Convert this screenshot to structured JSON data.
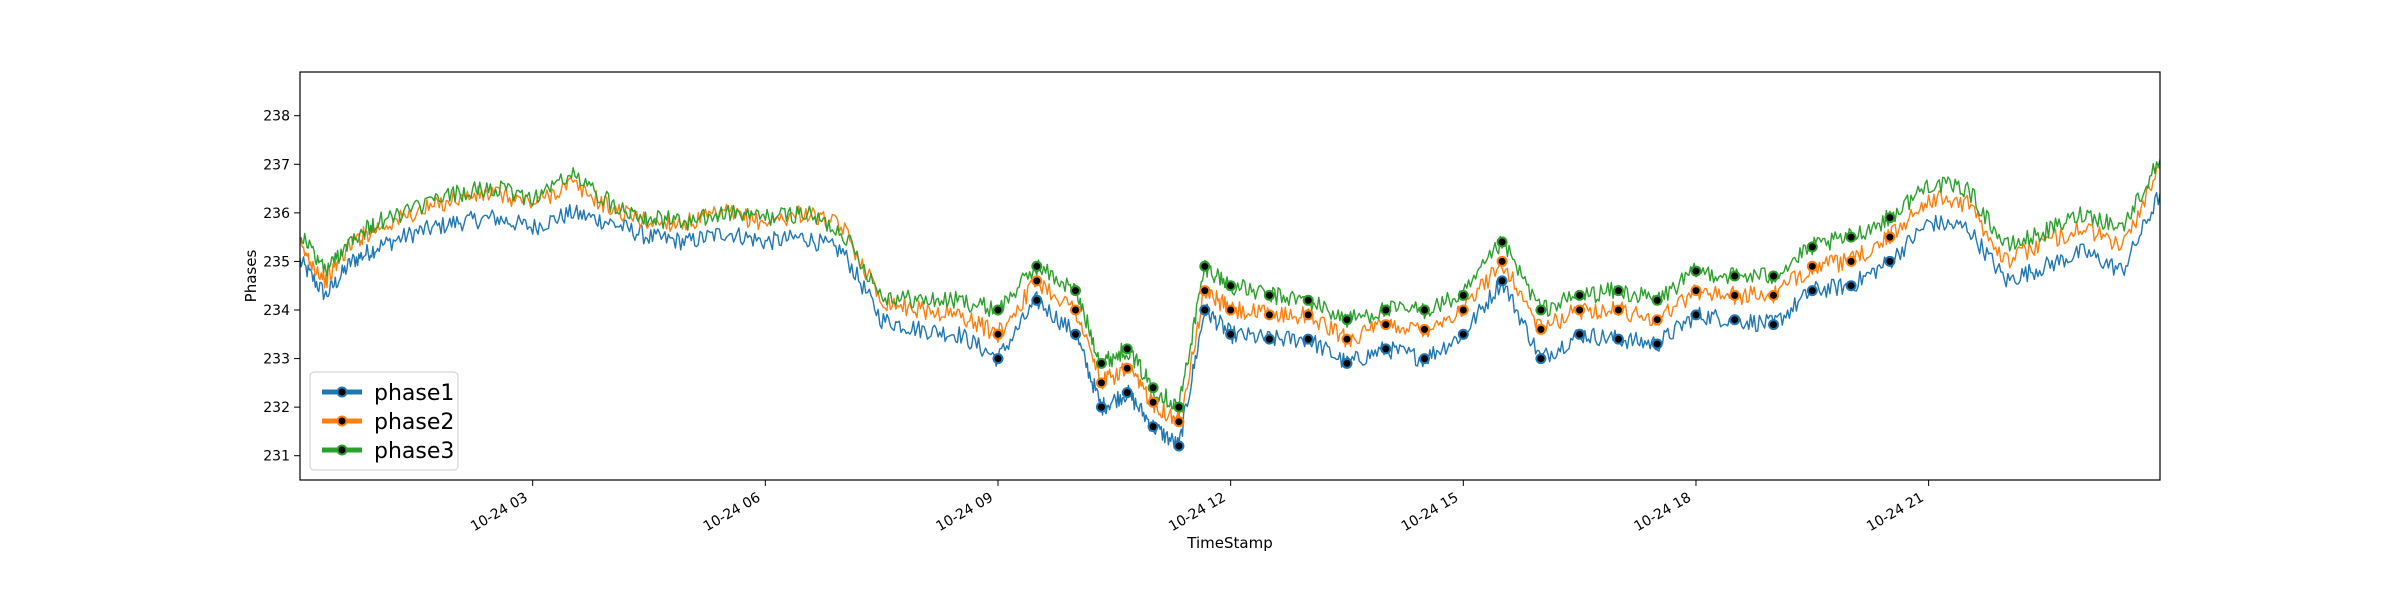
{
  "chart_data": {
    "type": "line",
    "title": "",
    "xlabel": "TimeStamp",
    "ylabel": "Phases",
    "ylim": [
      230.5,
      238.9
    ],
    "xlim": [
      "10-24 00:00",
      "10-24 23:59"
    ],
    "x_ticks": [
      "10-24 03",
      "10-24 06",
      "10-24 09",
      "10-24 12",
      "10-24 15",
      "10-24 18",
      "10-24 21"
    ],
    "y_ticks": [
      231,
      232,
      233,
      234,
      235,
      236,
      237,
      238
    ],
    "grid": false,
    "legend_position": "lower-left",
    "series": [
      {
        "name": "phase1",
        "color": "#1f77b4",
        "points": [
          [
            "10-24 00:00",
            235.0
          ],
          [
            "10-24 00:20",
            234.3
          ],
          [
            "10-24 00:40",
            235.0
          ],
          [
            "10-24 01:00",
            235.3
          ],
          [
            "10-24 01:30",
            235.6
          ],
          [
            "10-24 02:00",
            235.8
          ],
          [
            "10-24 02:30",
            235.9
          ],
          [
            "10-24 03:00",
            235.7
          ],
          [
            "10-24 03:30",
            236.0
          ],
          [
            "10-24 04:00",
            235.8
          ],
          [
            "10-24 04:30",
            235.5
          ],
          [
            "10-24 05:00",
            235.4
          ],
          [
            "10-24 05:30",
            235.6
          ],
          [
            "10-24 06:00",
            235.4
          ],
          [
            "10-24 06:30",
            235.5
          ],
          [
            "10-24 07:00",
            235.2
          ],
          [
            "10-24 07:30",
            233.8
          ],
          [
            "10-24 08:00",
            233.6
          ],
          [
            "10-24 08:30",
            233.5
          ],
          [
            "10-24 09:00",
            233.0
          ],
          [
            "10-24 09:30",
            234.2
          ],
          [
            "10-24 10:00",
            233.5
          ],
          [
            "10-24 10:20",
            232.0
          ],
          [
            "10-24 10:40",
            232.3
          ],
          [
            "10-24 11:00",
            231.6
          ],
          [
            "10-24 11:20",
            231.2
          ],
          [
            "10-24 11:40",
            234.0
          ],
          [
            "10-24 12:00",
            233.5
          ],
          [
            "10-24 12:30",
            233.4
          ],
          [
            "10-24 13:00",
            233.4
          ],
          [
            "10-24 13:30",
            232.9
          ],
          [
            "10-24 14:00",
            233.2
          ],
          [
            "10-24 14:30",
            233.0
          ],
          [
            "10-24 15:00",
            233.5
          ],
          [
            "10-24 15:30",
            234.6
          ],
          [
            "10-24 16:00",
            233.0
          ],
          [
            "10-24 16:30",
            233.5
          ],
          [
            "10-24 17:00",
            233.4
          ],
          [
            "10-24 17:30",
            233.3
          ],
          [
            "10-24 18:00",
            233.9
          ],
          [
            "10-24 18:30",
            233.8
          ],
          [
            "10-24 19:00",
            233.7
          ],
          [
            "10-24 19:30",
            234.4
          ],
          [
            "10-24 20:00",
            234.5
          ],
          [
            "10-24 20:30",
            235.0
          ],
          [
            "10-24 21:00",
            235.8
          ],
          [
            "10-24 21:30",
            235.7
          ],
          [
            "10-24 22:00",
            234.6
          ],
          [
            "10-24 22:30",
            234.9
          ],
          [
            "10-24 23:00",
            235.2
          ],
          [
            "10-24 23:30",
            234.8
          ],
          [
            "10-24 23:59",
            236.4
          ]
        ]
      },
      {
        "name": "phase2",
        "color": "#ff7f0e",
        "points": [
          [
            "10-24 00:00",
            235.3
          ],
          [
            "10-24 00:20",
            234.6
          ],
          [
            "10-24 00:40",
            235.4
          ],
          [
            "10-24 01:00",
            235.7
          ],
          [
            "10-24 01:30",
            236.0
          ],
          [
            "10-24 02:00",
            236.3
          ],
          [
            "10-24 02:30",
            236.4
          ],
          [
            "10-24 03:00",
            236.2
          ],
          [
            "10-24 03:30",
            236.6
          ],
          [
            "10-24 04:00",
            236.1
          ],
          [
            "10-24 04:30",
            235.8
          ],
          [
            "10-24 05:00",
            235.8
          ],
          [
            "10-24 05:30",
            236.0
          ],
          [
            "10-24 06:00",
            235.8
          ],
          [
            "10-24 06:30",
            236.0
          ],
          [
            "10-24 07:00",
            235.7
          ],
          [
            "10-24 07:30",
            234.2
          ],
          [
            "10-24 08:00",
            234.0
          ],
          [
            "10-24 08:30",
            233.9
          ],
          [
            "10-24 09:00",
            233.5
          ],
          [
            "10-24 09:30",
            234.6
          ],
          [
            "10-24 10:00",
            234.0
          ],
          [
            "10-24 10:20",
            232.5
          ],
          [
            "10-24 10:40",
            232.8
          ],
          [
            "10-24 11:00",
            232.1
          ],
          [
            "10-24 11:20",
            231.7
          ],
          [
            "10-24 11:40",
            234.4
          ],
          [
            "10-24 12:00",
            234.0
          ],
          [
            "10-24 12:30",
            233.9
          ],
          [
            "10-24 13:00",
            233.9
          ],
          [
            "10-24 13:30",
            233.4
          ],
          [
            "10-24 14:00",
            233.7
          ],
          [
            "10-24 14:30",
            233.6
          ],
          [
            "10-24 15:00",
            234.0
          ],
          [
            "10-24 15:30",
            235.0
          ],
          [
            "10-24 16:00",
            233.6
          ],
          [
            "10-24 16:30",
            234.0
          ],
          [
            "10-24 17:00",
            234.0
          ],
          [
            "10-24 17:30",
            233.8
          ],
          [
            "10-24 18:00",
            234.4
          ],
          [
            "10-24 18:30",
            234.3
          ],
          [
            "10-24 19:00",
            234.3
          ],
          [
            "10-24 19:30",
            234.9
          ],
          [
            "10-24 20:00",
            235.0
          ],
          [
            "10-24 20:30",
            235.5
          ],
          [
            "10-24 21:00",
            236.3
          ],
          [
            "10-24 21:30",
            236.2
          ],
          [
            "10-24 22:00",
            235.0
          ],
          [
            "10-24 22:30",
            235.4
          ],
          [
            "10-24 23:00",
            235.7
          ],
          [
            "10-24 23:30",
            235.3
          ],
          [
            "10-24 23:59",
            236.9
          ]
        ]
      },
      {
        "name": "phase3",
        "color": "#2ca02c",
        "points": [
          [
            "10-24 00:00",
            235.6
          ],
          [
            "10-24 00:20",
            234.8
          ],
          [
            "10-24 00:40",
            235.5
          ],
          [
            "10-24 01:00",
            235.8
          ],
          [
            "10-24 01:30",
            236.1
          ],
          [
            "10-24 02:00",
            236.4
          ],
          [
            "10-24 02:30",
            236.5
          ],
          [
            "10-24 03:00",
            236.3
          ],
          [
            "10-24 03:30",
            236.8
          ],
          [
            "10-24 04:00",
            236.2
          ],
          [
            "10-24 04:30",
            235.9
          ],
          [
            "10-24 05:00",
            235.8
          ],
          [
            "10-24 05:30",
            236.0
          ],
          [
            "10-24 06:00",
            235.9
          ],
          [
            "10-24 06:30",
            236.0
          ],
          [
            "10-24 07:00",
            235.6
          ],
          [
            "10-24 07:30",
            234.3
          ],
          [
            "10-24 08:00",
            234.2
          ],
          [
            "10-24 08:30",
            234.2
          ],
          [
            "10-24 09:00",
            234.0
          ],
          [
            "10-24 09:30",
            234.9
          ],
          [
            "10-24 10:00",
            234.4
          ],
          [
            "10-24 10:20",
            232.9
          ],
          [
            "10-24 10:40",
            233.2
          ],
          [
            "10-24 11:00",
            232.4
          ],
          [
            "10-24 11:20",
            232.0
          ],
          [
            "10-24 11:40",
            234.9
          ],
          [
            "10-24 12:00",
            234.5
          ],
          [
            "10-24 12:30",
            234.3
          ],
          [
            "10-24 13:00",
            234.2
          ],
          [
            "10-24 13:30",
            233.8
          ],
          [
            "10-24 14:00",
            234.0
          ],
          [
            "10-24 14:30",
            234.0
          ],
          [
            "10-24 15:00",
            234.3
          ],
          [
            "10-24 15:30",
            235.4
          ],
          [
            "10-24 16:00",
            234.0
          ],
          [
            "10-24 16:30",
            234.3
          ],
          [
            "10-24 17:00",
            234.4
          ],
          [
            "10-24 17:30",
            234.2
          ],
          [
            "10-24 18:00",
            234.8
          ],
          [
            "10-24 18:30",
            234.7
          ],
          [
            "10-24 19:00",
            234.7
          ],
          [
            "10-24 19:30",
            235.3
          ],
          [
            "10-24 20:00",
            235.5
          ],
          [
            "10-24 20:30",
            235.9
          ],
          [
            "10-24 21:00",
            236.6
          ],
          [
            "10-24 21:30",
            236.5
          ],
          [
            "10-24 22:00",
            235.3
          ],
          [
            "10-24 22:30",
            235.6
          ],
          [
            "10-24 23:00",
            236.0
          ],
          [
            "10-24 23:30",
            235.7
          ],
          [
            "10-24 23:59",
            237.1
          ]
        ]
      }
    ],
    "marker_color": "#000000"
  }
}
